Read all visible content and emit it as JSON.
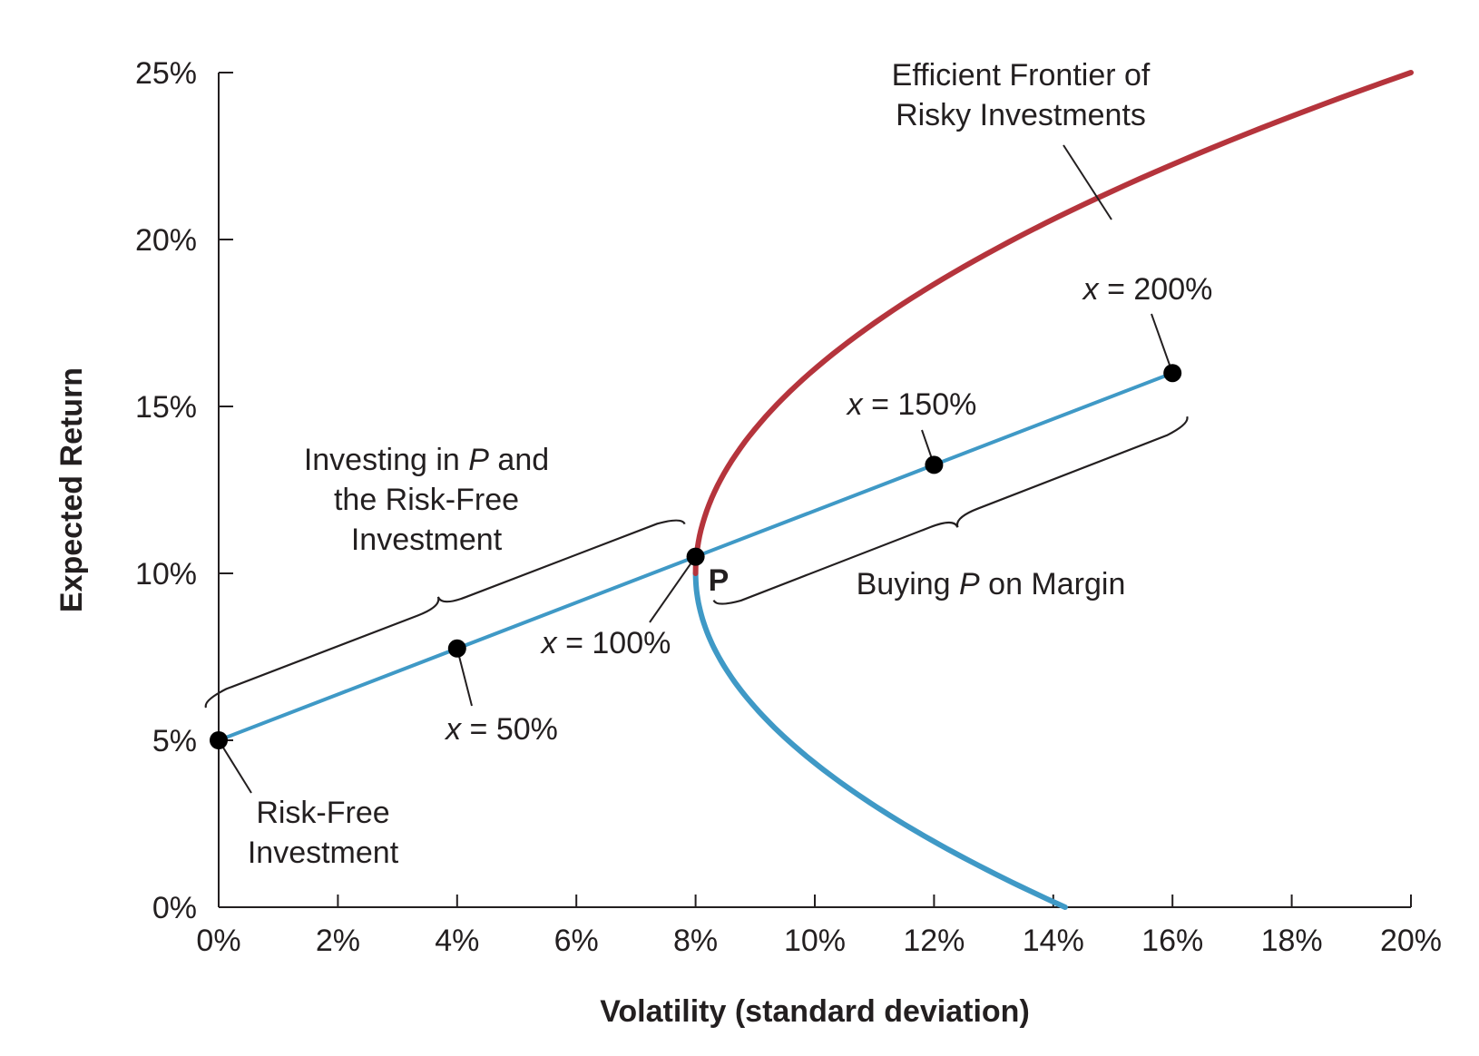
{
  "chart_data": {
    "type": "line",
    "xlabel": "Volatility (standard deviation)",
    "ylabel": "Expected Return",
    "xlim": [
      0,
      20
    ],
    "ylim": [
      0,
      25
    ],
    "x_ticks": [
      "0%",
      "2%",
      "4%",
      "6%",
      "8%",
      "10%",
      "12%",
      "14%",
      "16%",
      "18%",
      "20%"
    ],
    "y_ticks": [
      "0%",
      "5%",
      "10%",
      "15%",
      "20%",
      "25%"
    ],
    "grid": false,
    "colors": {
      "frontier_efficient": "#b5343c",
      "frontier_inefficient": "#3f99c6",
      "capital_line": "#3f99c6",
      "points": "#000000",
      "text": "#231f20"
    },
    "portfolio_P": {
      "volatility": 8,
      "return": 10.5
    },
    "risk_free": {
      "volatility": 0,
      "return": 5
    },
    "frontier": {
      "min_variance_point": {
        "volatility": 8,
        "return": 10
      },
      "upper_end": {
        "volatility": 20,
        "return": 25
      },
      "lower_end": {
        "volatility": 14.2,
        "return": 0
      }
    },
    "points": [
      {
        "x": 0,
        "y": 5,
        "label_main": "Risk-Free",
        "label_sub": "Investment"
      },
      {
        "x": 4,
        "y": 7.75,
        "label_var": "x",
        "label_rest": " = 50%"
      },
      {
        "x": 8,
        "y": 10.5,
        "label_var": "x",
        "label_rest": " = 100%",
        "point_name": "P"
      },
      {
        "x": 12,
        "y": 13.25,
        "label_var": "x",
        "label_rest": " = 150%"
      },
      {
        "x": 16,
        "y": 16,
        "label_var": "x",
        "label_rest": " = 200%"
      }
    ],
    "annotations": {
      "frontier_label_line1": "Efficient Frontier of",
      "frontier_label_line2": "Risky Investments",
      "invest_line1_a": "Investing in ",
      "invest_line1_var": "P",
      "invest_line1_b": " and",
      "invest_line2": "the Risk-Free",
      "invest_line3": "Investment",
      "margin_a": "Buying ",
      "margin_var": "P",
      "margin_b": " on Margin"
    }
  }
}
